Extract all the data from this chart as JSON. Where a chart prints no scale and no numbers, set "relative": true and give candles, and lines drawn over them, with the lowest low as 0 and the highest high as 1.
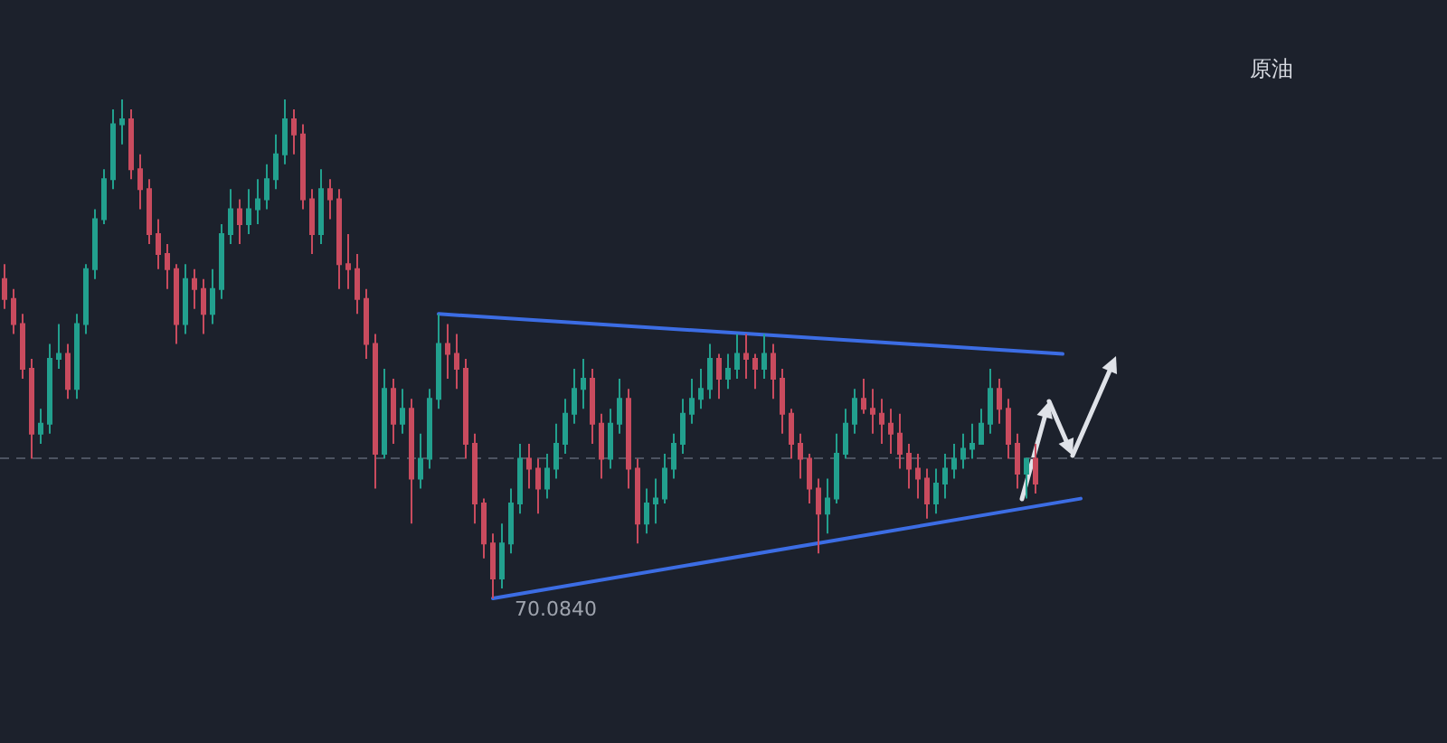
{
  "chart_data": {
    "type": "candlestick",
    "title": "原油",
    "relative": true,
    "grid": false,
    "tick_labels": false,
    "categories": [
      null,
      null,
      null,
      null,
      null,
      null,
      null,
      null,
      null,
      null,
      null,
      null,
      null,
      null,
      null,
      null,
      null,
      null,
      null,
      null,
      null,
      null,
      null,
      null,
      null,
      null,
      null,
      null,
      null,
      null,
      null,
      null,
      null,
      null,
      null,
      null,
      null,
      null,
      null,
      null,
      null,
      null,
      null,
      null,
      null,
      null,
      null,
      null,
      null,
      null,
      null,
      null,
      null,
      null,
      null,
      null,
      null,
      null,
      null,
      null,
      null,
      null,
      null,
      null,
      null,
      null,
      null,
      null,
      null,
      null,
      null,
      null,
      null,
      null,
      null,
      null,
      null,
      null,
      null,
      null,
      null,
      null,
      null,
      null,
      null,
      null,
      null,
      null,
      null,
      null,
      null,
      null,
      null,
      null,
      null,
      null,
      null,
      null,
      null,
      null,
      null,
      null,
      null,
      null,
      null,
      null,
      null,
      null,
      null,
      null,
      null,
      null,
      null,
      null,
      null,
      null,
      null,
      null,
      null,
      null,
      null,
      null,
      null,
      null,
      null,
      null,
      null,
      null,
      null,
      null,
      null,
      null,
      null,
      null,
      null,
      null,
      null,
      null,
      null,
      null,
      null,
      null,
      null,
      null,
      null,
      null,
      null,
      null,
      null,
      null,
      null,
      null,
      null,
      null,
      null,
      null,
      null,
      null,
      null,
      null
    ],
    "ohlc": [
      [
        0.64,
        0.67,
        0.58,
        0.6
      ],
      [
        0.6,
        0.62,
        0.53,
        0.55
      ],
      [
        0.55,
        0.57,
        0.44,
        0.46
      ],
      [
        0.46,
        0.48,
        0.28,
        0.33
      ],
      [
        0.33,
        0.38,
        0.31,
        0.35
      ],
      [
        0.35,
        0.51,
        0.33,
        0.48
      ],
      [
        0.48,
        0.55,
        0.46,
        0.49
      ],
      [
        0.49,
        0.51,
        0.4,
        0.42
      ],
      [
        0.42,
        0.57,
        0.4,
        0.55
      ],
      [
        0.55,
        0.67,
        0.53,
        0.66
      ],
      [
        0.66,
        0.78,
        0.64,
        0.76
      ],
      [
        0.76,
        0.86,
        0.75,
        0.84
      ],
      [
        0.84,
        0.98,
        0.82,
        0.95
      ],
      [
        0.95,
        1,
        0.91,
        0.96
      ],
      [
        0.96,
        0.98,
        0.84,
        0.86
      ],
      [
        0.86,
        0.89,
        0.78,
        0.82
      ],
      [
        0.82,
        0.84,
        0.71,
        0.73
      ],
      [
        0.73,
        0.76,
        0.66,
        0.69
      ],
      [
        0.69,
        0.71,
        0.62,
        0.66
      ],
      [
        0.66,
        0.67,
        0.51,
        0.55
      ],
      [
        0.55,
        0.67,
        0.53,
        0.64
      ],
      [
        0.64,
        0.66,
        0.58,
        0.62
      ],
      [
        0.62,
        0.64,
        0.53,
        0.57
      ],
      [
        0.57,
        0.66,
        0.55,
        0.62
      ],
      [
        0.62,
        0.75,
        0.6,
        0.73
      ],
      [
        0.73,
        0.82,
        0.71,
        0.78
      ],
      [
        0.78,
        0.8,
        0.71,
        0.75
      ],
      [
        0.75,
        0.82,
        0.73,
        0.78
      ],
      [
        0.78,
        0.84,
        0.75,
        0.8
      ],
      [
        0.8,
        0.87,
        0.78,
        0.84
      ],
      [
        0.84,
        0.93,
        0.82,
        0.89
      ],
      [
        0.89,
        1,
        0.87,
        0.96
      ],
      [
        0.96,
        0.98,
        0.89,
        0.93
      ],
      [
        0.93,
        0.95,
        0.78,
        0.8
      ],
      [
        0.8,
        0.82,
        0.69,
        0.73
      ],
      [
        0.73,
        0.86,
        0.71,
        0.82
      ],
      [
        0.82,
        0.84,
        0.76,
        0.8
      ],
      [
        0.8,
        0.82,
        0.62,
        0.67
      ],
      [
        0.67,
        0.73,
        0.62,
        0.66
      ],
      [
        0.66,
        0.69,
        0.57,
        0.6
      ],
      [
        0.6,
        0.62,
        0.48,
        0.51
      ],
      [
        0.51,
        0.53,
        0.22,
        0.29
      ],
      [
        0.29,
        0.46,
        0.28,
        0.42
      ],
      [
        0.42,
        0.44,
        0.31,
        0.35
      ],
      [
        0.35,
        0.42,
        0.33,
        0.38
      ],
      [
        0.38,
        0.4,
        0.15,
        0.24
      ],
      [
        0.24,
        0.33,
        0.22,
        0.28
      ],
      [
        0.28,
        0.42,
        0.26,
        0.4
      ],
      [
        0.4,
        0.57,
        0.38,
        0.51
      ],
      [
        0.51,
        0.55,
        0.44,
        0.49
      ],
      [
        0.49,
        0.53,
        0.42,
        0.46
      ],
      [
        0.46,
        0.48,
        0.28,
        0.31
      ],
      [
        0.31,
        0.33,
        0.15,
        0.19
      ],
      [
        0.19,
        0.2,
        0.08,
        0.11
      ],
      [
        0.11,
        0.13,
        0,
        0.04
      ],
      [
        0.04,
        0.15,
        0.02,
        0.11
      ],
      [
        0.11,
        0.22,
        0.09,
        0.19
      ],
      [
        0.19,
        0.31,
        0.17,
        0.28
      ],
      [
        0.28,
        0.31,
        0.22,
        0.26
      ],
      [
        0.26,
        0.28,
        0.17,
        0.22
      ],
      [
        0.22,
        0.29,
        0.2,
        0.26
      ],
      [
        0.26,
        0.35,
        0.24,
        0.31
      ],
      [
        0.31,
        0.4,
        0.29,
        0.37
      ],
      [
        0.37,
        0.46,
        0.35,
        0.42
      ],
      [
        0.42,
        0.48,
        0.38,
        0.44
      ],
      [
        0.44,
        0.46,
        0.31,
        0.35
      ],
      [
        0.35,
        0.37,
        0.24,
        0.28
      ],
      [
        0.28,
        0.38,
        0.26,
        0.35
      ],
      [
        0.35,
        0.44,
        0.33,
        0.4
      ],
      [
        0.4,
        0.42,
        0.22,
        0.26
      ],
      [
        0.26,
        0.28,
        0.11,
        0.15
      ],
      [
        0.15,
        0.22,
        0.13,
        0.19
      ],
      [
        0.19,
        0.24,
        0.15,
        0.2
      ],
      [
        0.2,
        0.29,
        0.19,
        0.26
      ],
      [
        0.26,
        0.33,
        0.24,
        0.31
      ],
      [
        0.31,
        0.4,
        0.29,
        0.37
      ],
      [
        0.37,
        0.44,
        0.35,
        0.4
      ],
      [
        0.4,
        0.46,
        0.38,
        0.42
      ],
      [
        0.42,
        0.51,
        0.4,
        0.48
      ],
      [
        0.48,
        0.49,
        0.4,
        0.44
      ],
      [
        0.44,
        0.49,
        0.42,
        0.46
      ],
      [
        0.46,
        0.53,
        0.44,
        0.49
      ],
      [
        0.49,
        0.53,
        0.44,
        0.48
      ],
      [
        0.48,
        0.49,
        0.42,
        0.46
      ],
      [
        0.46,
        0.53,
        0.44,
        0.49
      ],
      [
        0.49,
        0.51,
        0.4,
        0.44
      ],
      [
        0.44,
        0.46,
        0.33,
        0.37
      ],
      [
        0.37,
        0.38,
        0.28,
        0.31
      ],
      [
        0.31,
        0.33,
        0.24,
        0.28
      ],
      [
        0.28,
        0.29,
        0.19,
        0.22
      ],
      [
        0.22,
        0.24,
        0.09,
        0.17
      ],
      [
        0.17,
        0.24,
        0.13,
        0.2
      ],
      [
        0.2,
        0.33,
        0.19,
        0.29
      ],
      [
        0.29,
        0.38,
        0.28,
        0.35
      ],
      [
        0.35,
        0.42,
        0.33,
        0.4
      ],
      [
        0.4,
        0.44,
        0.37,
        0.38
      ],
      [
        0.38,
        0.42,
        0.33,
        0.37
      ],
      [
        0.37,
        0.4,
        0.31,
        0.35
      ],
      [
        0.35,
        0.38,
        0.29,
        0.33
      ],
      [
        0.33,
        0.37,
        0.26,
        0.29
      ],
      [
        0.29,
        0.31,
        0.22,
        0.26
      ],
      [
        0.26,
        0.29,
        0.2,
        0.24
      ],
      [
        0.24,
        0.26,
        0.16,
        0.19
      ],
      [
        0.19,
        0.26,
        0.17,
        0.23
      ],
      [
        0.23,
        0.29,
        0.2,
        0.26
      ],
      [
        0.26,
        0.31,
        0.24,
        0.28
      ],
      [
        0.28,
        0.33,
        0.26,
        0.3
      ],
      [
        0.3,
        0.35,
        0.28,
        0.31
      ],
      [
        0.31,
        0.38,
        0.31,
        0.35
      ],
      [
        0.35,
        0.46,
        0.33,
        0.42
      ],
      [
        0.42,
        0.44,
        0.35,
        0.38
      ],
      [
        0.38,
        0.4,
        0.28,
        0.31
      ],
      [
        0.31,
        0.33,
        0.22,
        0.25
      ],
      [
        0.25,
        0.28,
        0.2,
        0.28
      ],
      [
        0.28,
        0.31,
        0.21,
        0.23
      ],
      null,
      null,
      null,
      null,
      null,
      null,
      null,
      null,
      null,
      null,
      null,
      null,
      null,
      null,
      null,
      null,
      null,
      null,
      null,
      null,
      null,
      null,
      null,
      null,
      null,
      null,
      null,
      null,
      null,
      null,
      null,
      null,
      null,
      null,
      null,
      null,
      null,
      null,
      null,
      null,
      null,
      null,
      null,
      null,
      null
    ],
    "series": [
      {
        "type": "line",
        "color": "#3c6de4",
        "values": [
          null,
          null,
          null,
          null,
          null,
          null,
          null,
          null,
          null,
          null,
          null,
          null,
          null,
          null,
          null,
          null,
          null,
          null,
          null,
          null,
          null,
          null,
          null,
          null,
          null,
          null,
          null,
          null,
          null,
          null,
          null,
          null,
          null,
          null,
          null,
          null,
          null,
          null,
          null,
          null,
          null,
          null,
          null,
          null,
          null,
          null,
          null,
          null,
          0.57,
          null,
          null,
          null,
          null,
          null,
          null,
          null,
          null,
          null,
          null,
          null,
          null,
          null,
          null,
          null,
          null,
          null,
          null,
          null,
          null,
          null,
          null,
          null,
          null,
          null,
          null,
          null,
          null,
          null,
          null,
          null,
          null,
          null,
          null,
          null,
          null,
          null,
          null,
          null,
          null,
          null,
          null,
          null,
          null,
          null,
          null,
          null,
          null,
          null,
          null,
          null,
          null,
          null,
          null,
          null,
          null,
          null,
          null,
          null,
          null,
          null,
          null,
          null,
          null,
          null,
          null,
          null,
          null,
          0.49,
          null,
          null,
          null,
          null,
          null,
          null,
          null,
          null,
          null,
          null,
          null,
          null,
          null,
          null,
          null,
          null,
          null,
          null,
          null,
          null,
          null,
          null,
          null,
          null,
          null,
          null,
          null,
          null,
          null,
          null,
          null,
          null,
          null,
          null,
          null,
          null,
          null,
          null,
          null,
          null,
          null,
          null
        ]
      },
      {
        "type": "line",
        "color": "#3c6de4",
        "values": [
          null,
          null,
          null,
          null,
          null,
          null,
          null,
          null,
          null,
          null,
          null,
          null,
          null,
          null,
          null,
          null,
          null,
          null,
          null,
          null,
          null,
          null,
          null,
          null,
          null,
          null,
          null,
          null,
          null,
          null,
          null,
          null,
          null,
          null,
          null,
          null,
          null,
          null,
          null,
          null,
          null,
          null,
          null,
          null,
          null,
          null,
          null,
          null,
          null,
          null,
          null,
          null,
          null,
          null,
          0,
          null,
          null,
          null,
          null,
          null,
          null,
          null,
          null,
          null,
          null,
          null,
          null,
          null,
          null,
          null,
          null,
          null,
          null,
          null,
          null,
          null,
          null,
          null,
          null,
          null,
          null,
          null,
          null,
          null,
          null,
          null,
          null,
          null,
          null,
          null,
          null,
          null,
          null,
          null,
          null,
          null,
          null,
          null,
          null,
          null,
          null,
          null,
          null,
          null,
          null,
          null,
          null,
          null,
          null,
          null,
          null,
          null,
          null,
          null,
          null,
          null,
          null,
          null,
          null,
          0.2,
          null,
          null,
          null,
          null,
          null,
          null,
          null,
          null,
          null,
          null,
          null,
          null,
          null,
          null,
          null,
          null,
          null,
          null,
          null,
          null,
          null,
          null,
          null,
          null,
          null,
          null,
          null,
          null,
          null,
          null,
          null,
          null,
          null,
          null,
          null,
          null,
          null,
          null,
          null,
          null
        ]
      }
    ],
    "ref_lines": [
      {
        "axis": "y",
        "value": 0.28,
        "color": "#4d5361",
        "line_style": "dashed"
      }
    ],
    "annotations": [
      "70.0840"
    ]
  }
}
